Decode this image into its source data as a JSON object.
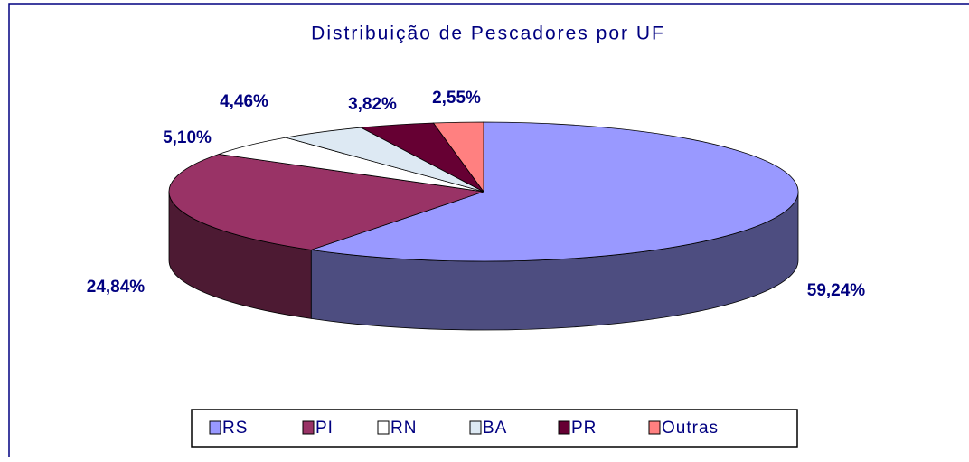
{
  "chart_data": {
    "type": "pie",
    "title": "Distribuição de Pescadores por UF",
    "categories": [
      "RS",
      "PI",
      "RN",
      "BA",
      "PR",
      "Outras"
    ],
    "values": [
      59.24,
      24.84,
      5.1,
      4.46,
      3.82,
      2.55
    ],
    "value_labels": [
      "59,24%",
      "24,84%",
      "5,10%",
      "4,46%",
      "3,82%",
      "2,55%"
    ],
    "colors": [
      "#9999ff",
      "#993366",
      "#ffffff",
      "#dde9f3",
      "#660033",
      "#ff8080"
    ]
  }
}
